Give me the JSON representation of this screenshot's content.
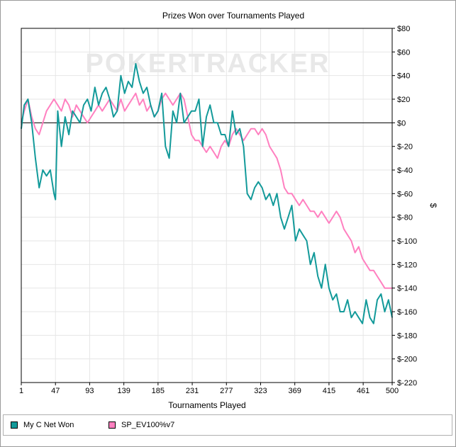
{
  "chart_data": {
    "type": "line",
    "title": "Prizes Won over Tournaments Played",
    "xlabel": "Tournaments Played",
    "ylabel": "$",
    "watermark": "POKERTRACKER",
    "xlim": [
      1,
      500
    ],
    "ylim": [
      -220,
      80
    ],
    "x_ticks": [
      "1",
      "47",
      "93",
      "139",
      "185",
      "231",
      "277",
      "323",
      "369",
      "415",
      "461",
      "500"
    ],
    "x_tick_values": [
      1,
      47,
      93,
      139,
      185,
      231,
      277,
      323,
      369,
      415,
      461,
      500
    ],
    "y_ticks": [
      "$80",
      "$60",
      "$40",
      "$20",
      "$0",
      "$-20",
      "$-40",
      "$-60",
      "$-80",
      "$-100",
      "$-120",
      "$-140",
      "$-160",
      "$-180",
      "$-200",
      "$-220"
    ],
    "y_tick_values": [
      80,
      60,
      40,
      20,
      0,
      -20,
      -40,
      -60,
      -80,
      -100,
      -120,
      -140,
      -160,
      -180,
      -200,
      -220
    ],
    "grid": true,
    "legend_position": "bottom-left",
    "series": [
      {
        "name": "My C Net Won",
        "color": "#139a9a",
        "x": [
          1,
          5,
          10,
          15,
          20,
          25,
          30,
          35,
          40,
          45,
          47,
          50,
          55,
          60,
          65,
          70,
          75,
          80,
          85,
          90,
          95,
          100,
          105,
          110,
          115,
          120,
          125,
          130,
          135,
          140,
          145,
          150,
          155,
          160,
          165,
          170,
          175,
          180,
          185,
          190,
          195,
          200,
          205,
          210,
          215,
          220,
          225,
          230,
          235,
          240,
          245,
          250,
          255,
          260,
          265,
          270,
          275,
          280,
          285,
          290,
          295,
          300,
          305,
          310,
          315,
          320,
          325,
          330,
          335,
          340,
          345,
          350,
          355,
          360,
          365,
          370,
          375,
          380,
          385,
          390,
          395,
          400,
          405,
          410,
          415,
          420,
          425,
          430,
          435,
          440,
          445,
          450,
          455,
          460,
          465,
          470,
          475,
          480,
          485,
          490,
          495,
          500
        ],
        "values": [
          -5,
          15,
          20,
          0,
          -30,
          -55,
          -40,
          -45,
          -40,
          -60,
          -65,
          10,
          -20,
          5,
          -10,
          10,
          5,
          0,
          15,
          20,
          10,
          30,
          15,
          25,
          30,
          20,
          5,
          10,
          40,
          25,
          35,
          30,
          50,
          35,
          25,
          30,
          15,
          5,
          10,
          25,
          -20,
          -30,
          10,
          0,
          25,
          0,
          5,
          10,
          10,
          20,
          -20,
          5,
          15,
          0,
          0,
          -10,
          -10,
          -20,
          10,
          -10,
          -5,
          -20,
          -60,
          -65,
          -55,
          -50,
          -55,
          -65,
          -60,
          -70,
          -60,
          -80,
          -90,
          -80,
          -70,
          -100,
          -90,
          -95,
          -100,
          -120,
          -110,
          -130,
          -140,
          -120,
          -140,
          -150,
          -145,
          -160,
          -160,
          -150,
          -165,
          -160,
          -165,
          -170,
          -150,
          -165,
          -170,
          -150,
          -145,
          -160,
          -150,
          -165
        ]
      },
      {
        "name": "SP_EV100%v7",
        "color": "#ff80c0",
        "x": [
          1,
          5,
          10,
          15,
          20,
          25,
          30,
          35,
          40,
          45,
          50,
          55,
          60,
          65,
          70,
          75,
          80,
          85,
          90,
          95,
          100,
          105,
          110,
          115,
          120,
          125,
          130,
          135,
          140,
          145,
          150,
          155,
          160,
          165,
          170,
          175,
          180,
          185,
          190,
          195,
          200,
          205,
          210,
          215,
          220,
          225,
          230,
          235,
          240,
          245,
          250,
          255,
          260,
          265,
          270,
          275,
          280,
          285,
          290,
          295,
          300,
          305,
          310,
          315,
          320,
          325,
          330,
          335,
          340,
          345,
          350,
          355,
          360,
          365,
          370,
          375,
          380,
          385,
          390,
          395,
          400,
          405,
          410,
          415,
          420,
          425,
          430,
          435,
          440,
          445,
          450,
          455,
          460,
          465,
          470,
          475,
          480,
          485,
          490,
          495,
          500
        ],
        "values": [
          0,
          10,
          20,
          5,
          -5,
          -10,
          0,
          10,
          15,
          20,
          15,
          10,
          20,
          15,
          5,
          15,
          10,
          5,
          0,
          5,
          10,
          15,
          10,
          15,
          20,
          15,
          10,
          20,
          10,
          15,
          20,
          25,
          15,
          20,
          10,
          15,
          5,
          10,
          20,
          25,
          20,
          15,
          20,
          25,
          20,
          5,
          -10,
          -15,
          -15,
          -20,
          -25,
          -20,
          -25,
          -30,
          -20,
          -15,
          -20,
          -10,
          -5,
          -10,
          -15,
          -10,
          -5,
          -5,
          -10,
          -5,
          -10,
          -20,
          -25,
          -30,
          -40,
          -55,
          -60,
          -60,
          -65,
          -70,
          -65,
          -70,
          -75,
          -75,
          -80,
          -75,
          -80,
          -85,
          -80,
          -75,
          -80,
          -90,
          -95,
          -100,
          -110,
          -105,
          -115,
          -120,
          -125,
          -125,
          -130,
          -135,
          -140,
          -140,
          -140
        ]
      }
    ]
  }
}
